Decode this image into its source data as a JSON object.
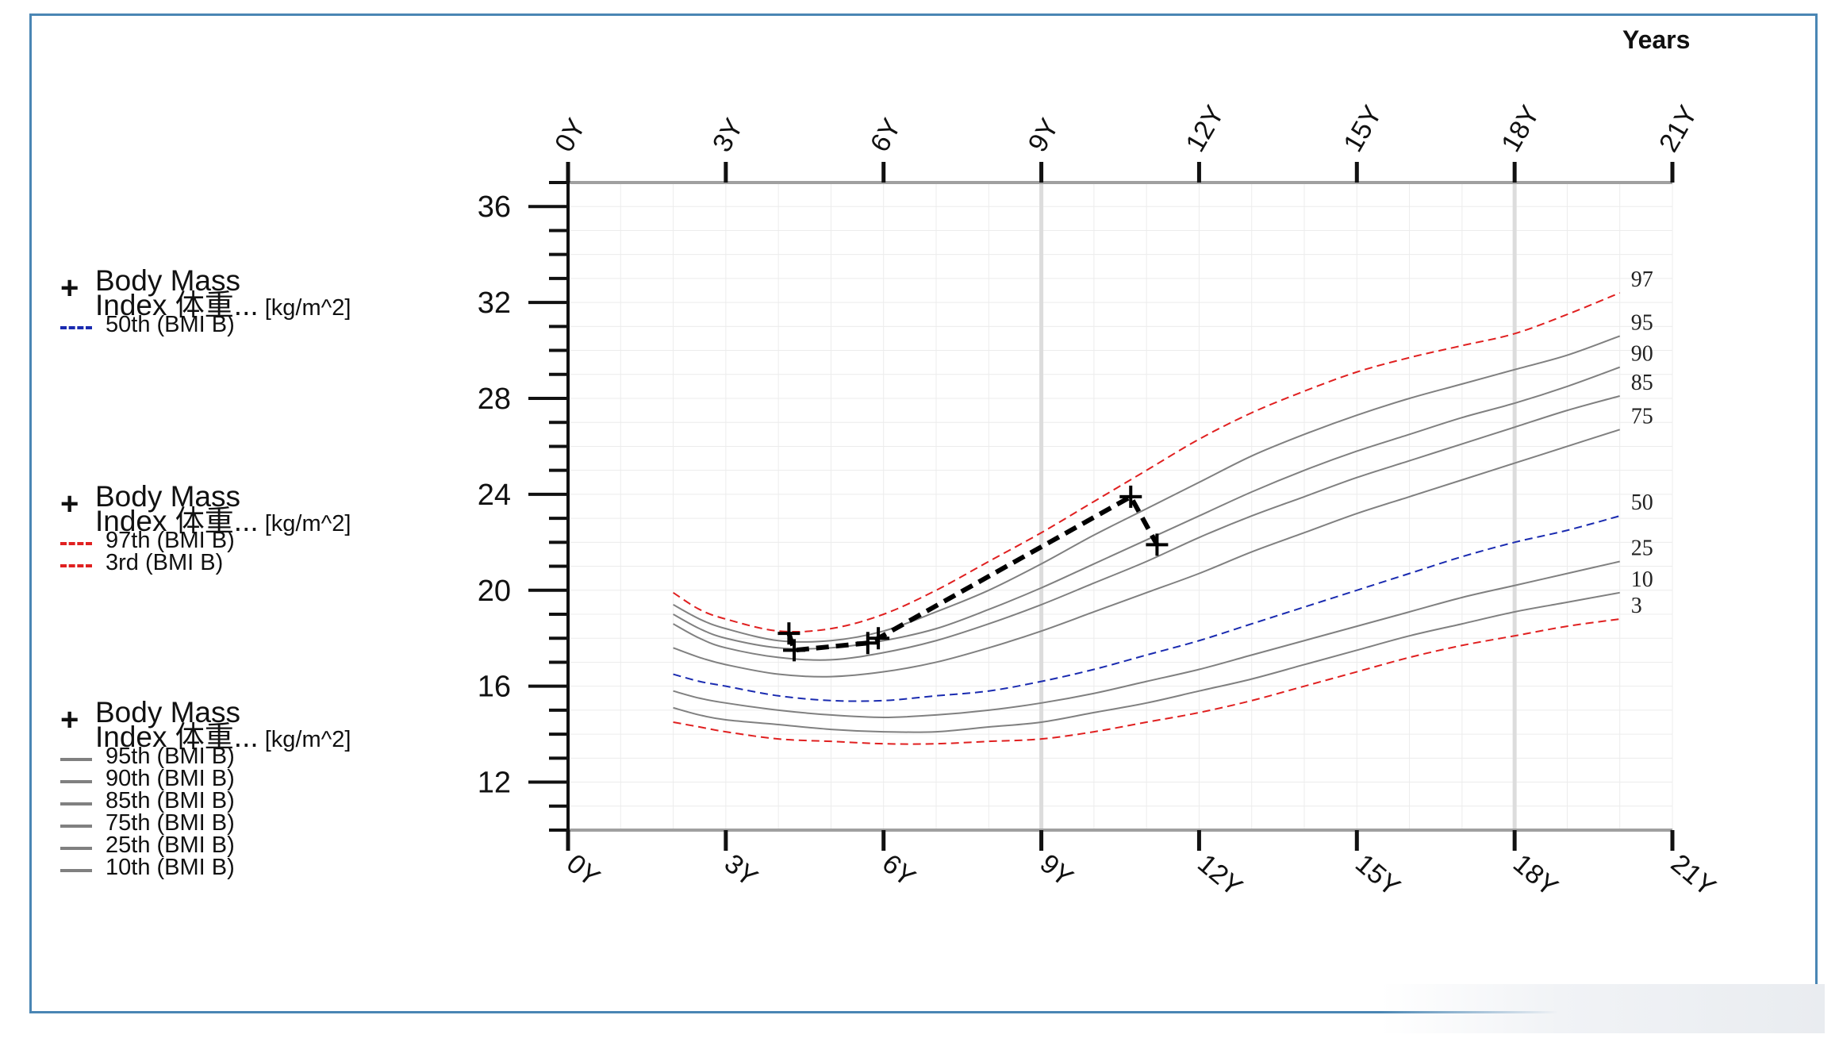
{
  "chart_data": {
    "type": "line",
    "title": "",
    "xlabel": "",
    "x_unit_label": "Years",
    "xlim": [
      0,
      21
    ],
    "ylim": [
      10,
      37
    ],
    "x_ticks": [
      0,
      3,
      6,
      9,
      12,
      15,
      18,
      21
    ],
    "x_tick_labels": [
      "0Y",
      "3Y",
      "6Y",
      "9Y",
      "12Y",
      "15Y",
      "18Y",
      "21Y"
    ],
    "y_ticks": [
      12,
      16,
      20,
      24,
      28,
      32,
      36
    ],
    "y_tick_labels": [
      "12",
      "16",
      "20",
      "24",
      "28",
      "32",
      "36"
    ],
    "grid": true,
    "highlight_x": [
      9,
      18
    ],
    "legend_placement": "left",
    "series": [
      {
        "key": "p97",
        "end_label": "97",
        "color": "#e02020",
        "dashed": true,
        "x": [
          2,
          2.5,
          3,
          4,
          5,
          6,
          7,
          8,
          9,
          10,
          11,
          12,
          13,
          14,
          15,
          16,
          17,
          18,
          19,
          20
        ],
        "y": [
          19.9,
          19.2,
          18.8,
          18.3,
          18.4,
          19.0,
          20.0,
          21.2,
          22.4,
          23.7,
          25.0,
          26.3,
          27.4,
          28.3,
          29.1,
          29.7,
          30.2,
          30.7,
          31.5,
          32.4
        ]
      },
      {
        "key": "p95",
        "end_label": "95",
        "color": "#808080",
        "dashed": false,
        "x": [
          2,
          2.5,
          3,
          4,
          5,
          6,
          7,
          8,
          9,
          10,
          11,
          12,
          13,
          14,
          15,
          16,
          17,
          18,
          19,
          20
        ],
        "y": [
          19.4,
          18.8,
          18.4,
          17.9,
          17.9,
          18.3,
          19.1,
          20.0,
          21.1,
          22.3,
          23.4,
          24.5,
          25.6,
          26.5,
          27.3,
          28.0,
          28.6,
          29.2,
          29.8,
          30.6
        ]
      },
      {
        "key": "p90",
        "end_label": "90",
        "color": "#808080",
        "dashed": false,
        "x": [
          2,
          2.5,
          3,
          4,
          5,
          6,
          7,
          8,
          9,
          10,
          11,
          12,
          13,
          14,
          15,
          16,
          17,
          18,
          19,
          20
        ],
        "y": [
          19.0,
          18.4,
          18.0,
          17.6,
          17.6,
          17.9,
          18.4,
          19.2,
          20.1,
          21.1,
          22.1,
          23.1,
          24.1,
          25.0,
          25.8,
          26.5,
          27.2,
          27.8,
          28.5,
          29.3
        ]
      },
      {
        "key": "p85",
        "end_label": "85",
        "color": "#808080",
        "dashed": false,
        "x": [
          2,
          2.5,
          3,
          4,
          5,
          6,
          7,
          8,
          9,
          10,
          11,
          12,
          13,
          14,
          15,
          16,
          17,
          18,
          19,
          20
        ],
        "y": [
          18.6,
          18.0,
          17.6,
          17.2,
          17.1,
          17.4,
          17.9,
          18.6,
          19.4,
          20.3,
          21.2,
          22.2,
          23.1,
          23.9,
          24.7,
          25.4,
          26.1,
          26.8,
          27.5,
          28.1
        ]
      },
      {
        "key": "p75",
        "end_label": "75",
        "color": "#808080",
        "dashed": false,
        "x": [
          2,
          2.5,
          3,
          4,
          5,
          6,
          7,
          8,
          9,
          10,
          11,
          12,
          13,
          14,
          15,
          16,
          17,
          18,
          19,
          20
        ],
        "y": [
          17.6,
          17.2,
          16.9,
          16.5,
          16.4,
          16.6,
          17.0,
          17.6,
          18.3,
          19.1,
          19.9,
          20.7,
          21.6,
          22.4,
          23.2,
          23.9,
          24.6,
          25.3,
          26.0,
          26.7
        ]
      },
      {
        "key": "p50",
        "end_label": "50",
        "color": "#1a2bb0",
        "dashed": true,
        "x": [
          2,
          2.5,
          3,
          4,
          5,
          6,
          7,
          8,
          9,
          10,
          11,
          12,
          13,
          14,
          15,
          16,
          17,
          18,
          19,
          20
        ],
        "y": [
          16.5,
          16.2,
          16.0,
          15.6,
          15.4,
          15.4,
          15.6,
          15.8,
          16.2,
          16.7,
          17.3,
          17.9,
          18.6,
          19.3,
          20.0,
          20.7,
          21.4,
          22.0,
          22.5,
          23.1
        ]
      },
      {
        "key": "p25",
        "end_label": "25",
        "color": "#808080",
        "dashed": false,
        "x": [
          2,
          2.5,
          3,
          4,
          5,
          6,
          7,
          8,
          9,
          10,
          11,
          12,
          13,
          14,
          15,
          16,
          17,
          18,
          19,
          20
        ],
        "y": [
          15.8,
          15.5,
          15.3,
          15.0,
          14.8,
          14.7,
          14.8,
          15.0,
          15.3,
          15.7,
          16.2,
          16.7,
          17.3,
          17.9,
          18.5,
          19.1,
          19.7,
          20.2,
          20.7,
          21.2
        ]
      },
      {
        "key": "p10",
        "end_label": "10",
        "color": "#808080",
        "dashed": false,
        "x": [
          2,
          2.5,
          3,
          4,
          5,
          6,
          7,
          8,
          9,
          10,
          11,
          12,
          13,
          14,
          15,
          16,
          17,
          18,
          19,
          20
        ],
        "y": [
          15.1,
          14.8,
          14.6,
          14.4,
          14.2,
          14.1,
          14.1,
          14.3,
          14.5,
          14.9,
          15.3,
          15.8,
          16.3,
          16.9,
          17.5,
          18.1,
          18.6,
          19.1,
          19.5,
          19.9
        ]
      },
      {
        "key": "p3",
        "end_label": "3",
        "color": "#e02020",
        "dashed": true,
        "x": [
          2,
          2.5,
          3,
          4,
          5,
          6,
          7,
          8,
          9,
          10,
          11,
          12,
          13,
          14,
          15,
          16,
          17,
          18,
          19,
          20
        ],
        "y": [
          14.5,
          14.3,
          14.1,
          13.8,
          13.7,
          13.6,
          13.6,
          13.7,
          13.8,
          14.1,
          14.5,
          14.9,
          15.4,
          16.0,
          16.6,
          17.2,
          17.7,
          18.1,
          18.5,
          18.8
        ]
      },
      {
        "key": "patient",
        "end_label": "",
        "color": "#000000",
        "dashed": true,
        "patient": true,
        "x": [
          4.2,
          4.3,
          5.7,
          5.9,
          10.7,
          11.2
        ],
        "y": [
          18.2,
          17.5,
          17.8,
          18.0,
          23.9,
          21.9
        ]
      }
    ]
  },
  "legend": {
    "groups": [
      {
        "line1": "Body Mass",
        "line2": "Index 体重...",
        "unit": " [kg/m^2]",
        "items": [
          {
            "label": "50th (BMI B)",
            "style": "dash-blue"
          }
        ]
      },
      {
        "line1": "Body Mass",
        "line2": "Index 体重...",
        "unit": " [kg/m^2]",
        "items": [
          {
            "label": "97th (BMI B)",
            "style": "dash-red"
          },
          {
            "label": "3rd (BMI B)",
            "style": "dash-red"
          }
        ]
      },
      {
        "line1": "Body Mass",
        "line2": "Index 体重...",
        "unit": " [kg/m^2]",
        "items": [
          {
            "label": "95th (BMI B)",
            "style": "solid-gray"
          },
          {
            "label": "90th (BMI B)",
            "style": "solid-gray"
          },
          {
            "label": "85th (BMI B)",
            "style": "solid-gray"
          },
          {
            "label": "75th (BMI B)",
            "style": "solid-gray"
          },
          {
            "label": "25th (BMI B)",
            "style": "solid-gray"
          },
          {
            "label": "10th (BMI B)",
            "style": "solid-gray"
          }
        ]
      }
    ]
  }
}
